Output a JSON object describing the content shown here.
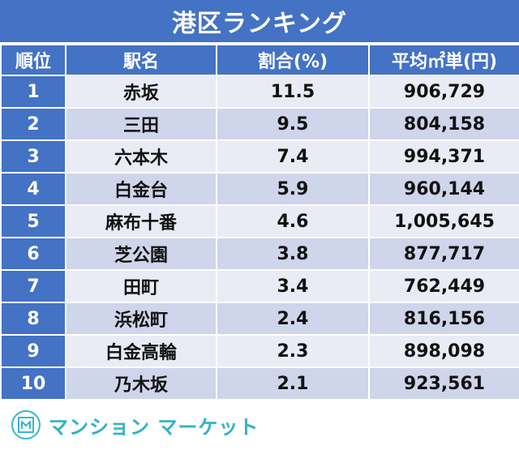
{
  "title": "港区ランキング",
  "headers": [
    "順位",
    "駅名",
    "割合(%)",
    "平均㎡単(円)"
  ],
  "rows": [
    {
      "rank": "1",
      "station": "赤坂",
      "ratio": "11.5",
      "price": "906,729"
    },
    {
      "rank": "2",
      "station": "三田",
      "ratio": "9.5",
      "price": "804,158"
    },
    {
      "rank": "3",
      "station": "六本木",
      "ratio": "7.4",
      "price": "994,371"
    },
    {
      "rank": "4",
      "station": "白金台",
      "ratio": "5.9",
      "price": "960,144"
    },
    {
      "rank": "5",
      "station": "麻布十番",
      "ratio": "4.6",
      "price": "1,005,645"
    },
    {
      "rank": "6",
      "station": "芝公園",
      "ratio": "3.8",
      "price": "877,717"
    },
    {
      "rank": "7",
      "station": "田町",
      "ratio": "3.4",
      "price": "762,449"
    },
    {
      "rank": "8",
      "station": "浜松町",
      "ratio": "2.4",
      "price": "816,156"
    },
    {
      "rank": "9",
      "station": "白金高輪",
      "ratio": "2.3",
      "price": "898,098"
    },
    {
      "rank": "10",
      "station": "乃木坂",
      "ratio": "2.1",
      "price": "923,561"
    }
  ],
  "logo": {
    "text": "マンション マーケット",
    "icon": "building-m-icon"
  },
  "colors": {
    "header": "#4472c4",
    "row_light": "#e9ebf5",
    "row_dark": "#cfd5ea",
    "logo": "#2fb3c6"
  }
}
